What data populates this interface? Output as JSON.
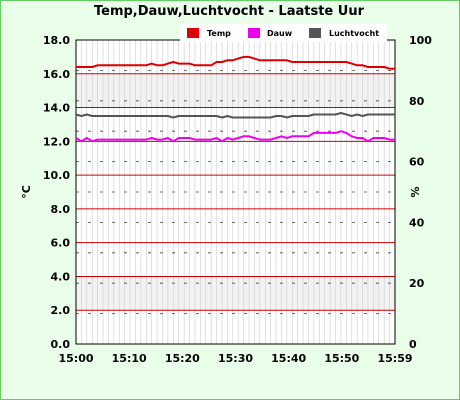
{
  "chart_data": {
    "type": "line",
    "title": "Temp,Dauw,Luchtvocht - Laatste Uur",
    "ylabel_left": "°C",
    "ylabel_right": "%",
    "left_axis": {
      "min": 0,
      "max": 18,
      "ticks": [
        "0.0",
        "2.0",
        "4.0",
        "6.0",
        "8.0",
        "10.0",
        "12.0",
        "14.0",
        "16.0",
        "18.0"
      ]
    },
    "right_axis": {
      "min": 0,
      "max": 100,
      "ticks": [
        "0",
        "20",
        "40",
        "60",
        "80",
        "100"
      ]
    },
    "x_ticks": [
      "15:00",
      "15:10",
      "15:20",
      "15:30",
      "15:40",
      "15:50",
      "15:59"
    ],
    "x_range": [
      0,
      59
    ],
    "grid": true,
    "legend_position": "top",
    "series": [
      {
        "name": "Temp",
        "axis": "left",
        "color": "#dd0000",
        "x": [
          0,
          1,
          2,
          3,
          4,
          5,
          6,
          7,
          8,
          9,
          10,
          11,
          12,
          13,
          14,
          15,
          16,
          17,
          18,
          19,
          20,
          21,
          22,
          23,
          24,
          25,
          26,
          27,
          28,
          29,
          30,
          31,
          32,
          33,
          34,
          35,
          36,
          37,
          38,
          39,
          40,
          41,
          42,
          43,
          44,
          45,
          46,
          47,
          48,
          49,
          50,
          51,
          52,
          53,
          54,
          55,
          56,
          57,
          58,
          59
        ],
        "values": [
          16.4,
          16.4,
          16.4,
          16.4,
          16.5,
          16.5,
          16.5,
          16.5,
          16.5,
          16.5,
          16.5,
          16.5,
          16.5,
          16.5,
          16.6,
          16.5,
          16.5,
          16.6,
          16.7,
          16.6,
          16.6,
          16.6,
          16.5,
          16.5,
          16.5,
          16.5,
          16.7,
          16.7,
          16.8,
          16.8,
          16.9,
          17.0,
          17.0,
          16.9,
          16.8,
          16.8,
          16.8,
          16.8,
          16.8,
          16.8,
          16.7,
          16.7,
          16.7,
          16.7,
          16.7,
          16.7,
          16.7,
          16.7,
          16.7,
          16.7,
          16.7,
          16.6,
          16.5,
          16.5,
          16.4,
          16.4,
          16.4,
          16.4,
          16.3,
          16.3
        ]
      },
      {
        "name": "Dauw",
        "axis": "left",
        "color": "#ee00ee",
        "x": [
          0,
          1,
          2,
          3,
          4,
          5,
          6,
          7,
          8,
          9,
          10,
          11,
          12,
          13,
          14,
          15,
          16,
          17,
          18,
          19,
          20,
          21,
          22,
          23,
          24,
          25,
          26,
          27,
          28,
          29,
          30,
          31,
          32,
          33,
          34,
          35,
          36,
          37,
          38,
          39,
          40,
          41,
          42,
          43,
          44,
          45,
          46,
          47,
          48,
          49,
          50,
          51,
          52,
          53,
          54,
          55,
          56,
          57,
          58,
          59
        ],
        "values": [
          12.2,
          12.0,
          12.2,
          12.0,
          12.1,
          12.1,
          12.1,
          12.1,
          12.1,
          12.1,
          12.1,
          12.1,
          12.1,
          12.1,
          12.2,
          12.1,
          12.1,
          12.2,
          12.0,
          12.2,
          12.2,
          12.2,
          12.1,
          12.1,
          12.1,
          12.1,
          12.2,
          12.0,
          12.2,
          12.1,
          12.2,
          12.3,
          12.3,
          12.2,
          12.1,
          12.1,
          12.1,
          12.2,
          12.3,
          12.2,
          12.3,
          12.3,
          12.3,
          12.3,
          12.5,
          12.5,
          12.5,
          12.5,
          12.5,
          12.6,
          12.5,
          12.3,
          12.2,
          12.2,
          12.0,
          12.2,
          12.2,
          12.2,
          12.1,
          12.1
        ]
      },
      {
        "name": "Luchtvocht",
        "axis": "right",
        "color": "#555555",
        "x": [
          0,
          1,
          2,
          3,
          4,
          5,
          6,
          7,
          8,
          9,
          10,
          11,
          12,
          13,
          14,
          15,
          16,
          17,
          18,
          19,
          20,
          21,
          22,
          23,
          24,
          25,
          26,
          27,
          28,
          29,
          30,
          31,
          32,
          33,
          34,
          35,
          36,
          37,
          38,
          39,
          40,
          41,
          42,
          43,
          44,
          45,
          46,
          47,
          48,
          49,
          50,
          51,
          52,
          53,
          54,
          55,
          56,
          57,
          58,
          59
        ],
        "values": [
          75.5,
          75.0,
          75.5,
          75.0,
          75.0,
          75.0,
          75.0,
          75.0,
          75.0,
          75.0,
          75.0,
          75.0,
          75.0,
          75.0,
          75.0,
          75.0,
          75.0,
          75.0,
          74.5,
          75.0,
          75.0,
          75.0,
          75.0,
          75.0,
          75.0,
          75.0,
          75.0,
          74.5,
          75.0,
          74.5,
          74.5,
          74.5,
          74.5,
          74.5,
          74.5,
          74.5,
          74.5,
          75.0,
          75.0,
          74.5,
          75.0,
          75.0,
          75.0,
          75.0,
          75.5,
          75.5,
          75.5,
          75.5,
          75.5,
          76.0,
          75.5,
          75.0,
          75.5,
          75.0,
          75.5,
          75.5,
          75.5,
          75.5,
          75.5,
          75.5
        ]
      }
    ]
  }
}
